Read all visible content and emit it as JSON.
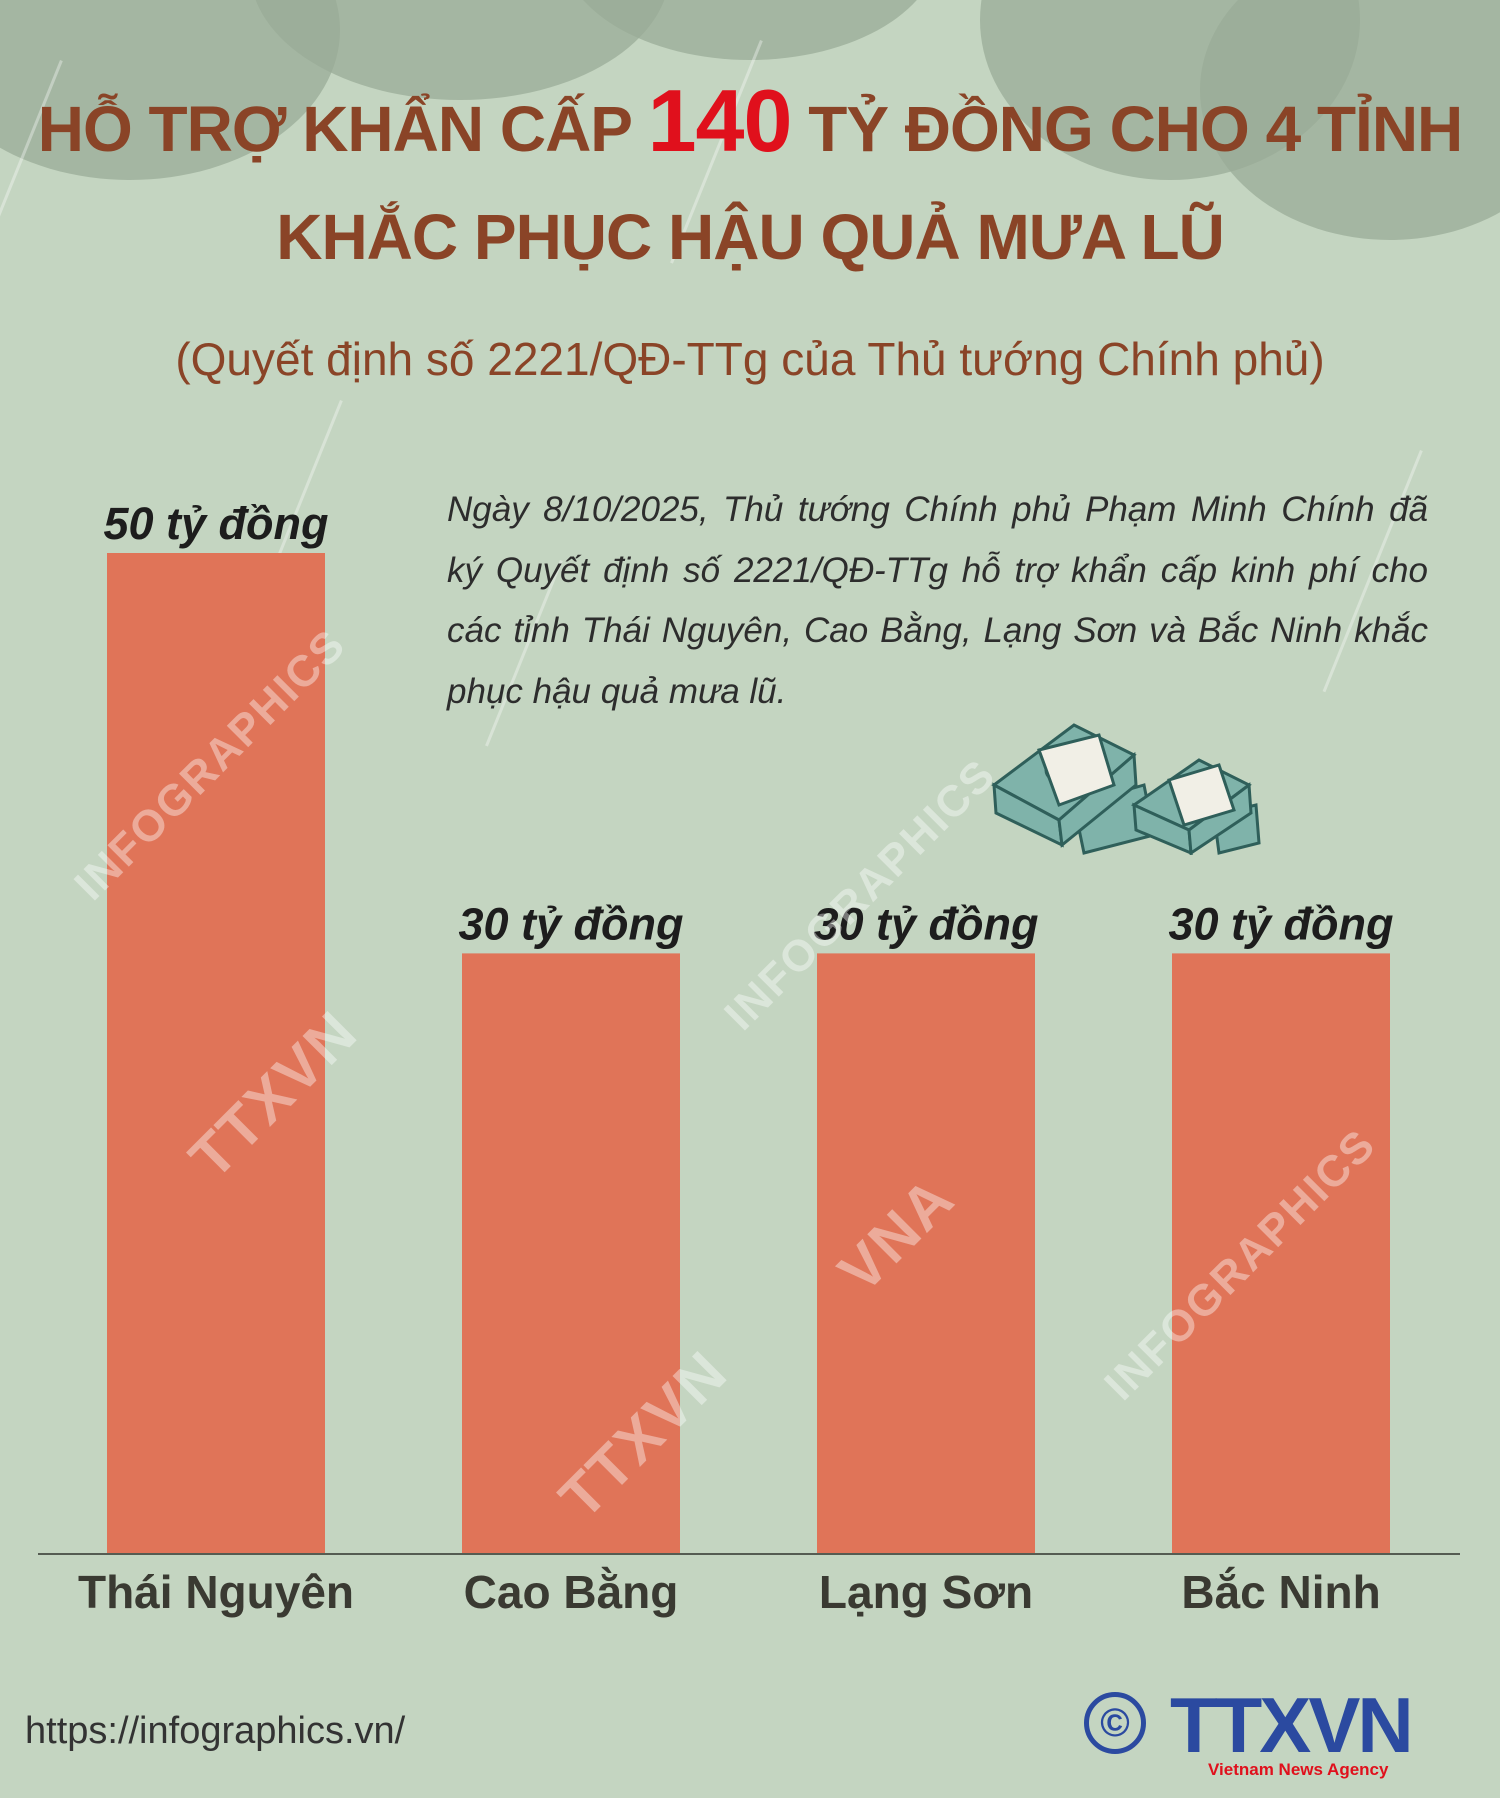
{
  "header": {
    "title_part1": "HỖ TRỢ KHẨN CẤP ",
    "title_highlight": "140",
    "title_part2": " TỶ ĐỒNG CHO 4 TỈNH",
    "title_line2": "KHẮC PHỤC HẬU QUẢ MƯA LŨ",
    "subtitle": "(Quyết định số 2221/QĐ-TTg của Thủ tướng Chính phủ)"
  },
  "description": "Ngày 8/10/2025, Thủ tướng Chính phủ Phạm Minh Chính đã ký Quyết định số 2221/QĐ-TTg hỗ trợ khẩn cấp kinh phí cho các tỉnh Thái Nguyên, Cao Bằng, Lạng Sơn và Bắc Ninh khắc phục hậu quả mưa lũ.",
  "colors": {
    "bar": "#e07458",
    "title": "#8a4427",
    "highlight": "#e0101c",
    "background": "#c4d5c1"
  },
  "chart_data": {
    "type": "bar",
    "categories": [
      "Thái Nguyên",
      "Cao Bằng",
      "Lạng Sơn",
      "Bắc Ninh"
    ],
    "values": [
      50,
      30,
      30,
      30
    ],
    "data_labels": [
      "50 tỷ đồng",
      "30 tỷ đồng",
      "30 tỷ đồng",
      "30 tỷ đồng"
    ],
    "ylim": [
      0,
      50
    ],
    "grid": false
  },
  "icons": {
    "money": "money-stacks-icon"
  },
  "footer": {
    "url": "https://infographics.vn/",
    "copyright_symbol": "©",
    "logo_text": "TTXVN",
    "logo_tagline": "Vietnam News Agency"
  },
  "watermarks": [
    "INFOGRAPHICS",
    "TTXVN",
    "VNA"
  ]
}
